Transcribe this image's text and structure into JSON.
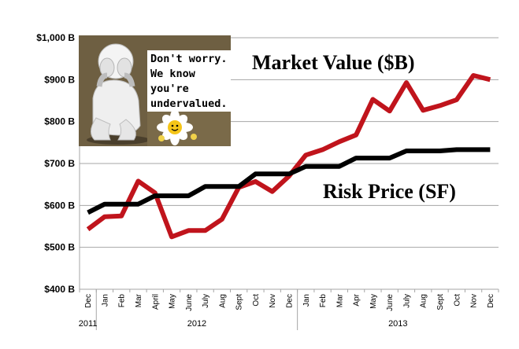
{
  "chart_data": {
    "type": "line",
    "title": "",
    "xlabel": "",
    "ylabel": "",
    "ylim": [
      400,
      1000
    ],
    "yticks": [
      "$400 B",
      "$500 B",
      "$600 B",
      "$700 B",
      "$800 B",
      "$900 B",
      "$1,000 B"
    ],
    "categories": [
      "Dec",
      "Jan",
      "Feb",
      "Mar",
      "April",
      "May",
      "June",
      "July",
      "Aug",
      "Sept",
      "Oct",
      "Nov",
      "Dec",
      "Jan",
      "Feb",
      "Mar",
      "Apr",
      "May",
      "June",
      "July",
      "Aug",
      "Sept",
      "Oct",
      "Nov",
      "Dec"
    ],
    "year_labels": [
      {
        "label": "2011",
        "index": 0
      },
      {
        "label": "2012",
        "index": 6.5
      },
      {
        "label": "2013",
        "index": 18.5
      }
    ],
    "year_dividers": [
      0.5,
      12.5
    ],
    "series": [
      {
        "name": "Market Value ($B)",
        "color": "#c0141c",
        "values": [
          543,
          573,
          575,
          658,
          630,
          525,
          540,
          540,
          567,
          643,
          657,
          633,
          670,
          720,
          733,
          752,
          768,
          853,
          825,
          893,
          827,
          838,
          852,
          910,
          900
        ]
      },
      {
        "name": "Risk Price (SF)",
        "color": "#000000",
        "values": [
          583,
          603,
          603,
          603,
          623,
          623,
          623,
          645,
          645,
          645,
          675,
          675,
          675,
          693,
          693,
          693,
          713,
          713,
          713,
          730,
          730,
          730,
          733,
          733,
          733
        ]
      }
    ],
    "grid": "horizontal",
    "legend": "inline labels"
  },
  "labels": {
    "market": "Market Value ($B)",
    "risk": "Risk Price (SF)"
  },
  "inset": {
    "lines": [
      "Don't worry.",
      "We know",
      "you're",
      "undervalued."
    ],
    "background": "#6e5f42"
  }
}
